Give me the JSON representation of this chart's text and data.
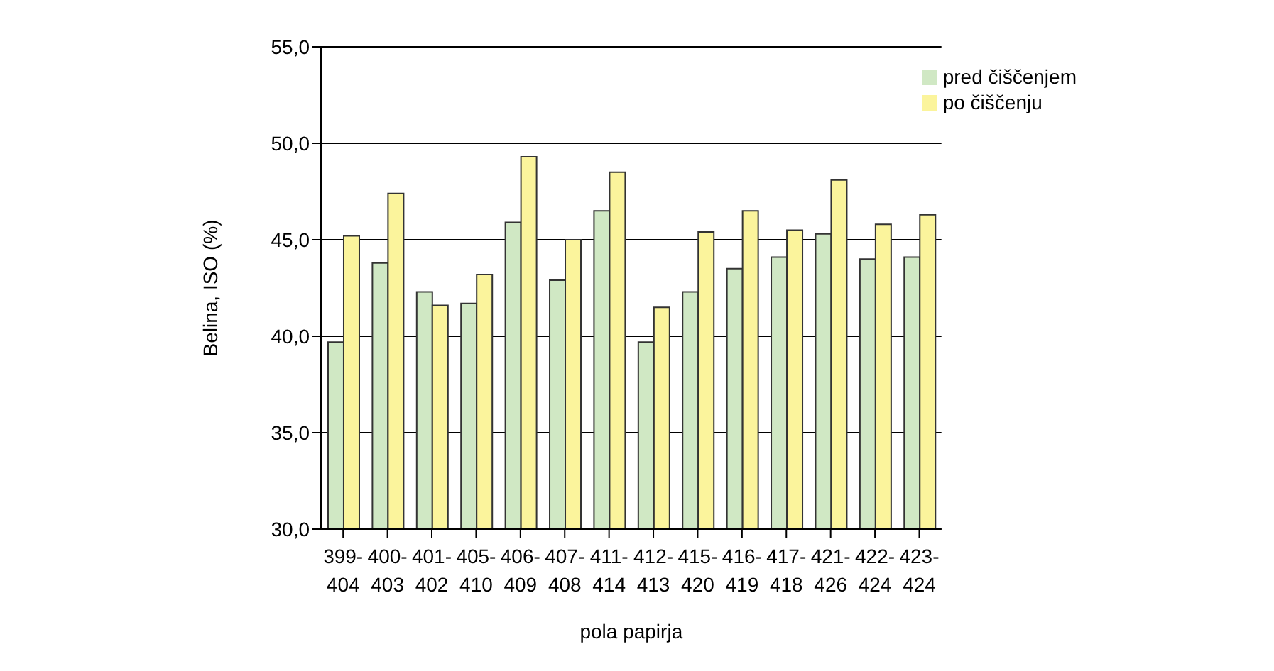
{
  "chart_data": {
    "type": "bar",
    "xlabel": "pola papirja",
    "ylabel": "Belina, ISO (%)",
    "categories": [
      "399-404",
      "400-403",
      "401-402",
      "405-410",
      "406-409",
      "407-408",
      "411-414",
      "412-413",
      "415-420",
      "416-419",
      "417-418",
      "421-426",
      "422-424",
      "423-424"
    ],
    "series": [
      {
        "name": "pred čiščenjem",
        "color": "#d0e8c4",
        "values": [
          39.7,
          43.8,
          42.3,
          41.7,
          45.9,
          42.9,
          46.5,
          39.7,
          42.3,
          43.5,
          44.1,
          45.3,
          44.0,
          44.1
        ]
      },
      {
        "name": "po čiščenju",
        "color": "#fbf49c",
        "values": [
          45.2,
          47.4,
          41.6,
          43.2,
          49.3,
          45.0,
          48.5,
          41.5,
          45.4,
          46.5,
          45.5,
          48.1,
          45.8,
          46.3
        ]
      }
    ],
    "ylim": [
      30,
      55
    ],
    "yticks": [
      {
        "value": 30,
        "label": "30,0"
      },
      {
        "value": 35,
        "label": "35,0"
      },
      {
        "value": 40,
        "label": "40,0"
      },
      {
        "value": 45,
        "label": "45,0"
      },
      {
        "value": 50,
        "label": "50,0"
      },
      {
        "value": 55,
        "label": "55,0"
      }
    ],
    "grid": "y",
    "legend": "top right"
  }
}
